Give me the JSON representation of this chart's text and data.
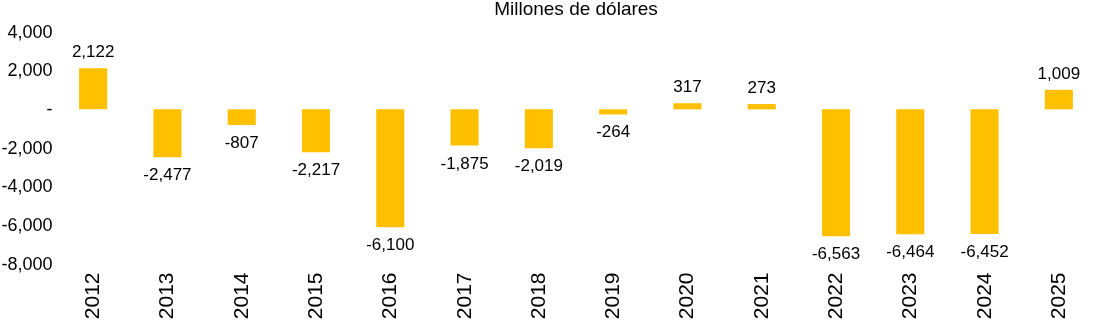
{
  "chart_data": {
    "type": "bar",
    "title": "Millones de dólares",
    "categories": [
      "2012",
      "2013",
      "2014",
      "2015",
      "2016",
      "2017",
      "2018",
      "2019",
      "2020",
      "2021",
      "2022",
      "2023",
      "2024",
      "2025"
    ],
    "values": [
      2122,
      -2477,
      -807,
      -2217,
      -6100,
      -1875,
      -2019,
      -264,
      317,
      273,
      -6563,
      -6464,
      -6452,
      1009
    ],
    "value_labels": [
      "2,122",
      "-2,477",
      "-807",
      "-2,217",
      "-6,100",
      "-1,875",
      "-2,019",
      "-264",
      "317",
      "273",
      "-6,563",
      "-6,464",
      "-6,452",
      "1,009"
    ],
    "color": "#ffc000",
    "ylim": [
      -8000,
      4000
    ],
    "yticks": [
      {
        "value": 4000,
        "label": "4,000"
      },
      {
        "value": 2000,
        "label": "2,000"
      },
      {
        "value": 0,
        "label": "-"
      },
      {
        "value": -2000,
        "label": "-2,000"
      },
      {
        "value": -4000,
        "label": "-4,000"
      },
      {
        "value": -6000,
        "label": "-6,000"
      },
      {
        "value": -8000,
        "label": "-8,000"
      }
    ],
    "grid": false
  }
}
